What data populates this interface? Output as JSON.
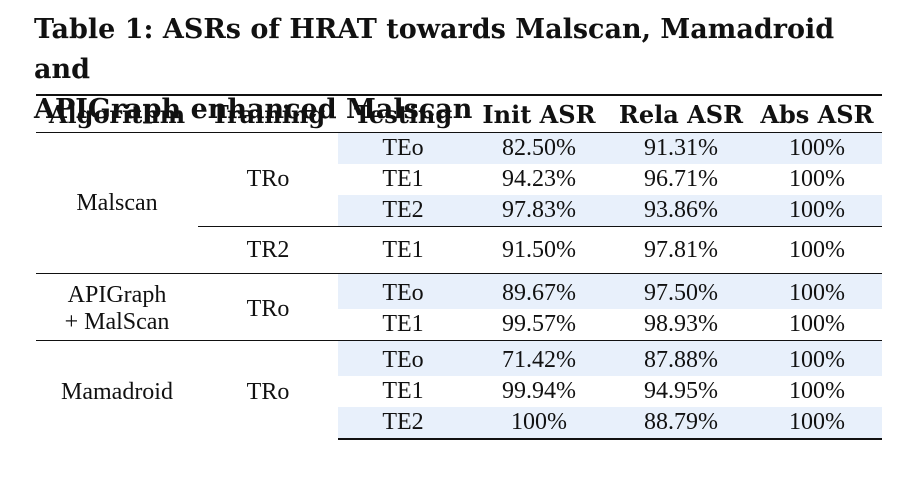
{
  "caption": {
    "line1": "Table 1: ASRs of HRAT towards Malscan, Mamadroid and",
    "line2": "APIGraph enhanced Malscan"
  },
  "headers": [
    "Algorithm",
    "Training",
    "Testing",
    "Init ASR",
    "Rela ASR",
    "Abs ASR"
  ],
  "groups": [
    {
      "algorithm": "Malscan",
      "blocks": [
        {
          "training": "TRo",
          "rows": [
            {
              "testing": "TEo",
              "init": "82.50%",
              "rela": "91.31%",
              "abs": "100%"
            },
            {
              "testing": "TE1",
              "init": "94.23%",
              "rela": "96.71%",
              "abs": "100%"
            },
            {
              "testing": "TE2",
              "init": "97.83%",
              "rela": "93.86%",
              "abs": "100%"
            }
          ]
        },
        {
          "training": "TR2",
          "rows": [
            {
              "testing": "TE1",
              "init": "91.50%",
              "rela": "97.81%",
              "abs": "100%"
            }
          ]
        }
      ]
    },
    {
      "algorithm_line1": "APIGraph",
      "algorithm_line2": "+ MalScan",
      "training": "TRo",
      "rows": [
        {
          "testing": "TEo",
          "init": "89.67%",
          "rela": "97.50%",
          "abs": "100%"
        },
        {
          "testing": "TE1",
          "init": "99.57%",
          "rela": "98.93%",
          "abs": "100%"
        }
      ]
    },
    {
      "algorithm": "Mamadroid",
      "training": "TRo",
      "rows": [
        {
          "testing": "TEo",
          "init": "71.42%",
          "rela": "87.88%",
          "abs": "100%"
        },
        {
          "testing": "TE1",
          "init": "99.94%",
          "rela": "94.95%",
          "abs": "100%"
        },
        {
          "testing": "TE2",
          "init": "100%",
          "rela": "88.79%",
          "abs": "100%"
        }
      ]
    }
  ],
  "colors": {
    "row_shade": "#e8f0fb",
    "text": "#111111"
  }
}
